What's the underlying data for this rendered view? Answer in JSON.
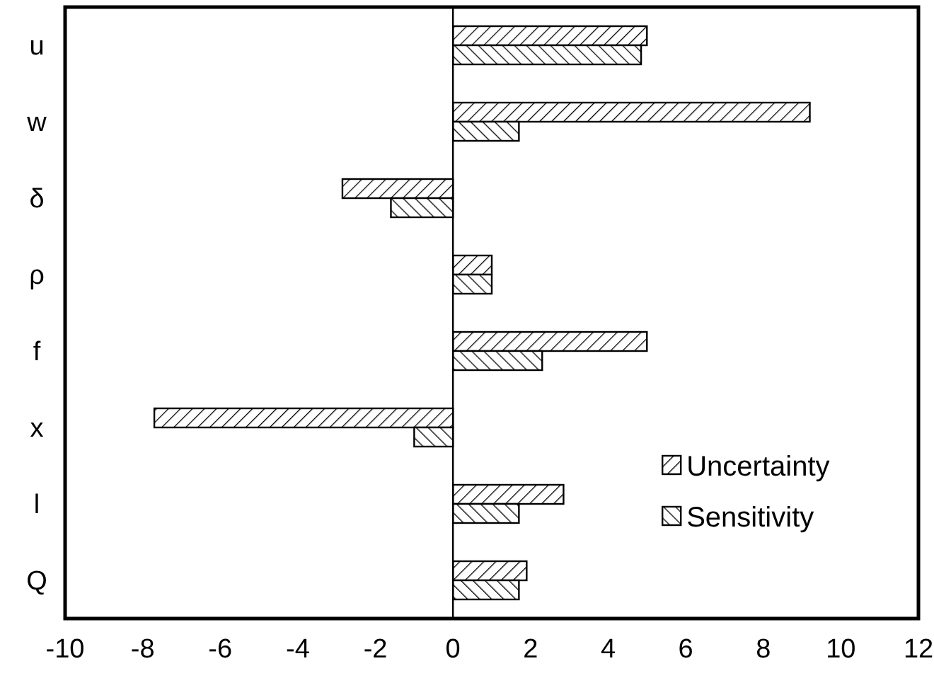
{
  "chart_data": {
    "type": "bar",
    "orientation": "horizontal",
    "categories": [
      "u",
      "w",
      "δ",
      "ρ",
      "f",
      "x",
      "l",
      "Q"
    ],
    "series": [
      {
        "name": "Uncertainty",
        "color": "#000000",
        "values": [
          5.0,
          9.2,
          -2.85,
          1.0,
          5.0,
          -7.7,
          2.85,
          1.9
        ]
      },
      {
        "name": "Sensitivity",
        "color": "#000000",
        "values": [
          4.85,
          1.7,
          -1.6,
          1.0,
          2.3,
          -1.0,
          1.7,
          1.7
        ]
      }
    ],
    "xlim": [
      -10,
      12
    ],
    "xticks": [
      -10,
      -8,
      -6,
      -4,
      -2,
      0,
      2,
      4,
      6,
      8,
      10,
      12
    ],
    "legend": "right"
  }
}
